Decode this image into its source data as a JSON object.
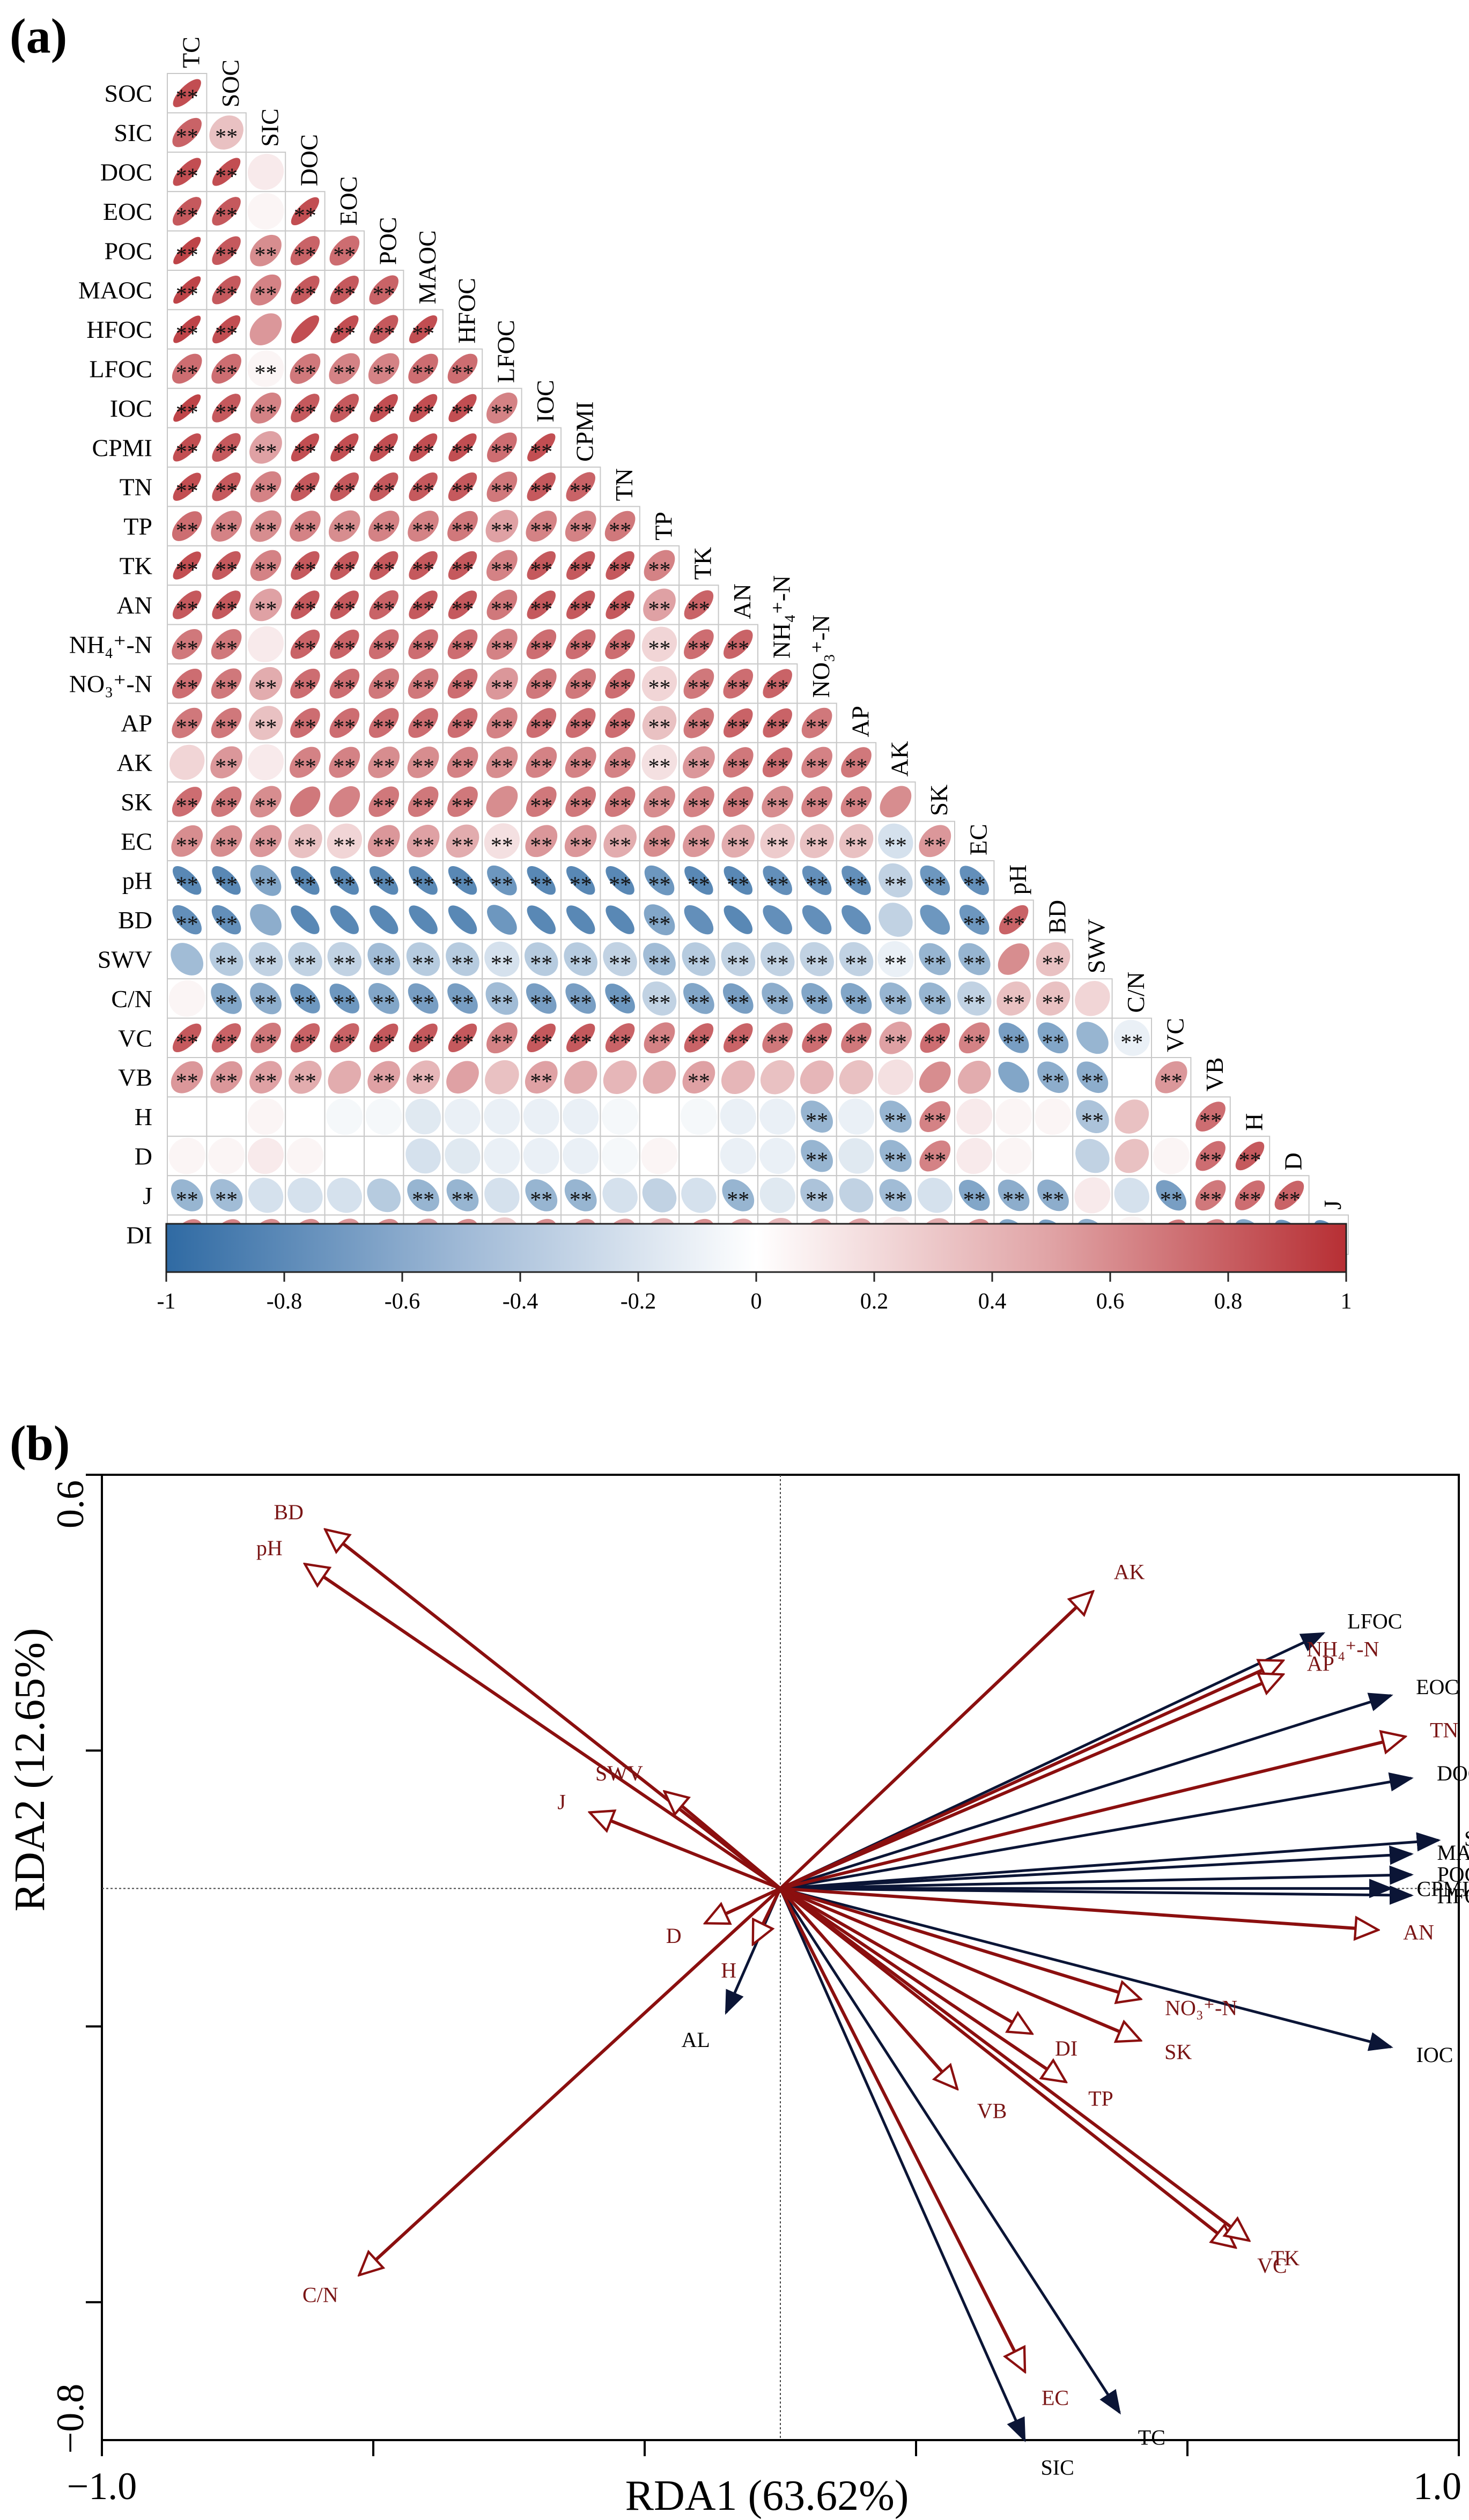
{
  "panel_a": {
    "label": "(a)"
  },
  "panel_b": {
    "label": "(b)"
  },
  "colors": {
    "negative": "#2f6aa3",
    "neutral": "#ffffff",
    "positive": "#b72f34",
    "explanatory_arrow": "#0b1536",
    "response_arrow": "#8b0f0f",
    "response_label": "#7a1515",
    "explanatory_label": "#000000"
  },
  "chart_data": [
    {
      "type": "heatmap",
      "title": "",
      "variables": [
        "TC",
        "SOC",
        "SIC",
        "DOC",
        "EOC",
        "POC",
        "MAOC",
        "HFOC",
        "LFOC",
        "IOC",
        "CPMI",
        "TN",
        "TP",
        "TK",
        "AN",
        "NH4+-N",
        "NO3+-N",
        "AP",
        "AK",
        "SK",
        "EC",
        "pH",
        "BD",
        "SWV",
        "C/N",
        "VC",
        "VB",
        "H",
        "D",
        "J",
        "DI"
      ],
      "variable_labels": [
        "TC",
        "SOC",
        "SIC",
        "DOC",
        "EOC",
        "POC",
        "MAOC",
        "HFOC",
        "LFOC",
        "IOC",
        "CPMI",
        "TN",
        "TP",
        "TK",
        "AN",
        "NH₄⁺-N",
        "NO₃⁺-N",
        "AP",
        "AK",
        "SK",
        "EC",
        "pH",
        "BD",
        "SWV",
        "C/N",
        "VC",
        "VB",
        "H",
        "D",
        "J",
        "DI"
      ],
      "significance_marker": "**",
      "colorbar": {
        "range": [
          -1,
          1
        ],
        "ticks": [
          -1,
          -0.8,
          -0.6,
          -0.4,
          -0.2,
          0,
          0.2,
          0.4,
          0.6,
          0.8,
          1
        ],
        "tick_labels": [
          "-1",
          "-0.8",
          "-0.6",
          "-0.4",
          "-0.2",
          "0",
          "0.2",
          "0.4",
          "0.6",
          "0.8",
          "1"
        ]
      },
      "lower_triangle_r": [
        [
          0.85
        ],
        [
          0.75,
          0.3
        ],
        [
          0.85,
          0.85,
          0.1
        ],
        [
          0.8,
          0.8,
          0.05,
          0.85
        ],
        [
          0.9,
          0.8,
          0.55,
          0.75,
          0.7
        ],
        [
          0.9,
          0.8,
          0.6,
          0.8,
          0.8,
          0.75
        ],
        [
          0.9,
          0.85,
          0.5,
          0.85,
          0.85,
          0.8,
          0.85
        ],
        [
          0.7,
          0.7,
          0.05,
          0.65,
          0.6,
          0.6,
          0.7,
          0.7
        ],
        [
          0.9,
          0.8,
          0.6,
          0.8,
          0.8,
          0.85,
          0.85,
          0.85,
          0.6
        ],
        [
          0.85,
          0.8,
          0.45,
          0.85,
          0.85,
          0.85,
          0.85,
          0.85,
          0.7,
          0.85
        ],
        [
          0.85,
          0.8,
          0.6,
          0.8,
          0.8,
          0.8,
          0.8,
          0.8,
          0.65,
          0.8,
          0.75
        ],
        [
          0.7,
          0.6,
          0.55,
          0.6,
          0.55,
          0.6,
          0.6,
          0.65,
          0.45,
          0.6,
          0.6,
          0.65
        ],
        [
          0.85,
          0.8,
          0.6,
          0.8,
          0.8,
          0.8,
          0.8,
          0.8,
          0.6,
          0.8,
          0.8,
          0.8,
          0.6
        ],
        [
          0.8,
          0.8,
          0.45,
          0.8,
          0.8,
          0.75,
          0.8,
          0.8,
          0.65,
          0.8,
          0.8,
          0.8,
          0.45,
          0.75
        ],
        [
          0.65,
          0.65,
          0.1,
          0.75,
          0.75,
          0.7,
          0.7,
          0.7,
          0.6,
          0.7,
          0.7,
          0.7,
          0.2,
          0.7,
          0.75
        ],
        [
          0.7,
          0.65,
          0.4,
          0.7,
          0.7,
          0.65,
          0.65,
          0.7,
          0.5,
          0.65,
          0.65,
          0.7,
          0.2,
          0.65,
          0.7,
          0.75
        ],
        [
          0.65,
          0.65,
          0.3,
          0.7,
          0.7,
          0.7,
          0.7,
          0.7,
          0.6,
          0.7,
          0.7,
          0.7,
          0.3,
          0.65,
          0.75,
          0.75,
          0.65
        ],
        [
          0.2,
          0.5,
          0.1,
          0.6,
          0.6,
          0.55,
          0.55,
          0.6,
          0.55,
          0.6,
          0.6,
          0.6,
          0.15,
          0.5,
          0.65,
          0.7,
          0.6,
          0.65
        ],
        [
          0.7,
          0.65,
          0.55,
          0.65,
          0.6,
          0.65,
          0.65,
          0.65,
          0.55,
          0.65,
          0.65,
          0.65,
          0.55,
          0.6,
          0.65,
          0.55,
          0.6,
          0.6,
          0.55
        ],
        [
          0.55,
          0.55,
          0.5,
          0.3,
          0.2,
          0.5,
          0.45,
          0.4,
          0.15,
          0.5,
          0.5,
          0.4,
          0.55,
          0.5,
          0.4,
          0.25,
          0.3,
          0.3,
          -0.2,
          0.5
        ],
        [
          -0.8,
          -0.8,
          -0.6,
          -0.8,
          -0.8,
          -0.8,
          -0.8,
          -0.8,
          -0.7,
          -0.8,
          -0.8,
          -0.8,
          -0.7,
          -0.8,
          -0.8,
          -0.75,
          -0.75,
          -0.75,
          -0.3,
          -0.7,
          -0.75
        ],
        [
          -0.75,
          -0.75,
          -0.55,
          -0.8,
          -0.8,
          -0.8,
          -0.8,
          -0.8,
          -0.7,
          -0.8,
          -0.8,
          -0.8,
          -0.6,
          -0.75,
          -0.8,
          -0.75,
          -0.75,
          -0.75,
          -0.3,
          -0.7,
          -0.7,
          0.75
        ],
        [
          -0.45,
          -0.35,
          -0.3,
          -0.3,
          -0.3,
          -0.45,
          -0.35,
          -0.35,
          -0.2,
          -0.35,
          -0.35,
          -0.3,
          -0.45,
          -0.35,
          -0.3,
          -0.3,
          -0.3,
          -0.3,
          -0.1,
          -0.5,
          -0.5,
          0.55,
          0.3
        ],
        [
          0.05,
          -0.6,
          -0.55,
          -0.7,
          -0.7,
          -0.6,
          -0.65,
          -0.65,
          -0.45,
          -0.65,
          -0.65,
          -0.7,
          -0.3,
          -0.6,
          -0.65,
          -0.55,
          -0.6,
          -0.6,
          -0.5,
          -0.5,
          -0.3,
          0.3,
          0.3,
          0.2
        ],
        [
          0.8,
          0.75,
          0.65,
          0.75,
          0.75,
          0.8,
          0.8,
          0.8,
          0.6,
          0.8,
          0.8,
          0.75,
          0.6,
          0.75,
          0.75,
          0.65,
          0.7,
          0.65,
          0.45,
          0.7,
          0.6,
          -0.65,
          -0.6,
          -0.5,
          -0.1
        ],
        [
          0.5,
          0.5,
          0.45,
          0.4,
          0.4,
          0.45,
          0.35,
          0.45,
          0.3,
          0.45,
          0.4,
          0.35,
          0.4,
          0.45,
          0.35,
          0.3,
          0.35,
          0.3,
          0.15,
          0.55,
          0.4,
          -0.6,
          -0.55,
          -0.55,
          0.0,
          0.5
        ],
        [
          0.0,
          0.0,
          0.05,
          0.0,
          -0.05,
          -0.05,
          -0.15,
          -0.1,
          -0.1,
          -0.1,
          -0.1,
          -0.05,
          0.0,
          -0.05,
          -0.1,
          -0.1,
          -0.5,
          -0.1,
          -0.5,
          0.6,
          0.1,
          0.05,
          0.05,
          -0.4,
          0.3,
          0.0,
          0.7
        ],
        [
          0.05,
          0.05,
          0.1,
          0.05,
          0.0,
          0.0,
          -0.2,
          -0.15,
          -0.1,
          -0.1,
          -0.1,
          -0.05,
          0.05,
          0.0,
          -0.1,
          -0.1,
          -0.5,
          -0.15,
          -0.5,
          0.6,
          0.1,
          0.05,
          0.0,
          -0.3,
          0.3,
          0.05,
          0.7,
          0.8
        ],
        [
          -0.5,
          -0.45,
          -0.2,
          -0.2,
          -0.2,
          -0.35,
          -0.5,
          -0.5,
          -0.2,
          -0.5,
          -0.5,
          -0.2,
          -0.3,
          -0.2,
          -0.5,
          -0.15,
          -0.4,
          -0.3,
          -0.45,
          -0.2,
          -0.6,
          -0.55,
          -0.55,
          0.1,
          -0.2,
          -0.65,
          0.65,
          0.7,
          0.75
        ],
        [
          0.6,
          0.6,
          0.55,
          0.55,
          0.5,
          0.55,
          0.5,
          0.55,
          0.25,
          0.55,
          0.55,
          0.5,
          0.4,
          0.55,
          0.5,
          0.35,
          0.5,
          0.45,
          0.1,
          0.4,
          0.55,
          -0.6,
          -0.65,
          -0.55,
          0.05,
          0.65,
          0.6,
          -0.6,
          -0.7,
          -0.75,
          -0.8
        ]
      ],
      "not_significant": [
        [
          2,
          2
        ],
        [
          3,
          2
        ],
        [
          4,
          2
        ],
        [
          7,
          2
        ],
        [
          7,
          3
        ],
        [
          15,
          2
        ],
        [
          18,
          0
        ],
        [
          18,
          2
        ],
        [
          19,
          3
        ],
        [
          19,
          4
        ],
        [
          19,
          8
        ],
        [
          19,
          18
        ],
        [
          22,
          2
        ],
        [
          22,
          3
        ],
        [
          22,
          4
        ],
        [
          22,
          5
        ],
        [
          22,
          6
        ],
        [
          22,
          7
        ],
        [
          22,
          8
        ],
        [
          22,
          9
        ],
        [
          22,
          10
        ],
        [
          22,
          11
        ],
        [
          22,
          13
        ],
        [
          22,
          14
        ],
        [
          22,
          15
        ],
        [
          22,
          16
        ],
        [
          22,
          17
        ],
        [
          22,
          18
        ],
        [
          22,
          19
        ],
        [
          23,
          0
        ],
        [
          23,
          21
        ],
        [
          24,
          0
        ],
        [
          24,
          23
        ],
        [
          25,
          23
        ],
        [
          26,
          4
        ],
        [
          26,
          7
        ],
        [
          26,
          8
        ],
        [
          26,
          10
        ],
        [
          26,
          11
        ],
        [
          26,
          12
        ],
        [
          26,
          14
        ],
        [
          26,
          15
        ],
        [
          26,
          16
        ],
        [
          26,
          17
        ],
        [
          26,
          18
        ],
        [
          26,
          19
        ],
        [
          26,
          20
        ],
        [
          26,
          21
        ],
        [
          26,
          24
        ],
        [
          27,
          0
        ],
        [
          27,
          1
        ],
        [
          27,
          2
        ],
        [
          27,
          3
        ],
        [
          27,
          4
        ],
        [
          27,
          5
        ],
        [
          27,
          6
        ],
        [
          27,
          7
        ],
        [
          27,
          8
        ],
        [
          27,
          9
        ],
        [
          27,
          10
        ],
        [
          27,
          11
        ],
        [
          27,
          12
        ],
        [
          27,
          13
        ],
        [
          27,
          14
        ],
        [
          27,
          15
        ],
        [
          27,
          17
        ],
        [
          27,
          20
        ],
        [
          27,
          21
        ],
        [
          27,
          22
        ],
        [
          27,
          24
        ],
        [
          27,
          25
        ],
        [
          28,
          0
        ],
        [
          28,
          1
        ],
        [
          28,
          2
        ],
        [
          28,
          3
        ],
        [
          28,
          4
        ],
        [
          28,
          5
        ],
        [
          28,
          6
        ],
        [
          28,
          7
        ],
        [
          28,
          8
        ],
        [
          28,
          9
        ],
        [
          28,
          10
        ],
        [
          28,
          11
        ],
        [
          28,
          12
        ],
        [
          28,
          13
        ],
        [
          28,
          14
        ],
        [
          28,
          15
        ],
        [
          28,
          17
        ],
        [
          28,
          20
        ],
        [
          28,
          21
        ],
        [
          28,
          22
        ],
        [
          28,
          23
        ],
        [
          28,
          24
        ],
        [
          28,
          25
        ],
        [
          29,
          2
        ],
        [
          29,
          3
        ],
        [
          29,
          4
        ],
        [
          29,
          5
        ],
        [
          29,
          8
        ],
        [
          29,
          11
        ],
        [
          29,
          12
        ],
        [
          29,
          13
        ],
        [
          29,
          15
        ],
        [
          29,
          17
        ],
        [
          29,
          19
        ],
        [
          29,
          23
        ],
        [
          29,
          24
        ],
        [
          30,
          8
        ],
        [
          30,
          12
        ],
        [
          30,
          15
        ],
        [
          30,
          18
        ],
        [
          30,
          19
        ],
        [
          30,
          23
        ],
        [
          30,
          24
        ]
      ]
    },
    {
      "type": "scatter",
      "subtype": "rda_biplot",
      "xlabel": "RDA1 (63.62%)",
      "ylabel": "RDA2 (12.65%)",
      "xlim": [
        -1.0,
        1.0
      ],
      "ylim": [
        -0.8,
        0.6
      ],
      "xtick_labels": [
        "−1.0",
        "1.0"
      ],
      "ytick_labels": [
        "0.6",
        "−0.8"
      ],
      "explanatory_vectors": [
        {
          "name": "LFOC",
          "x": 0.8,
          "y": 0.37
        },
        {
          "name": "EOC",
          "x": 0.9,
          "y": 0.28
        },
        {
          "name": "DOC",
          "x": 0.93,
          "y": 0.16
        },
        {
          "name": "SOC",
          "x": 0.97,
          "y": 0.07
        },
        {
          "name": "MAOC",
          "x": 0.93,
          "y": 0.05
        },
        {
          "name": "POC",
          "x": 0.93,
          "y": 0.02
        },
        {
          "name": "CPMI",
          "x": 0.9,
          "y": 0.0
        },
        {
          "name": "HFOC",
          "x": 0.93,
          "y": -0.01
        },
        {
          "name": "IOC",
          "x": 0.9,
          "y": -0.23
        },
        {
          "name": "TC",
          "x": 0.5,
          "y": -0.76
        },
        {
          "name": "SIC",
          "x": 0.36,
          "y": -0.8
        },
        {
          "name": "AL",
          "x": -0.08,
          "y": -0.18
        }
      ],
      "response_vectors": [
        {
          "name": "BD",
          "x": -0.67,
          "y": 0.52
        },
        {
          "name": "pH",
          "x": -0.7,
          "y": 0.47
        },
        {
          "name": "AK",
          "x": 0.46,
          "y": 0.43
        },
        {
          "name": "NH4+-N",
          "x": 0.74,
          "y": 0.33
        },
        {
          "name": "AP",
          "x": 0.74,
          "y": 0.31
        },
        {
          "name": "TN",
          "x": 0.92,
          "y": 0.22
        },
        {
          "name": "SWV",
          "x": -0.17,
          "y": 0.14
        },
        {
          "name": "J",
          "x": -0.28,
          "y": 0.11
        },
        {
          "name": "D",
          "x": -0.11,
          "y": -0.05
        },
        {
          "name": "H",
          "x": -0.04,
          "y": -0.08
        },
        {
          "name": "AN",
          "x": 0.88,
          "y": -0.06
        },
        {
          "name": "NO3+-N",
          "x": 0.53,
          "y": -0.16
        },
        {
          "name": "SK",
          "x": 0.53,
          "y": -0.22
        },
        {
          "name": "DI",
          "x": 0.37,
          "y": -0.21
        },
        {
          "name": "TP",
          "x": 0.42,
          "y": -0.28
        },
        {
          "name": "VB",
          "x": 0.26,
          "y": -0.29
        },
        {
          "name": "VC",
          "x": 0.67,
          "y": -0.52
        },
        {
          "name": "TK",
          "x": 0.69,
          "y": -0.51
        },
        {
          "name": "C/N",
          "x": -0.62,
          "y": -0.56
        },
        {
          "name": "EC",
          "x": 0.36,
          "y": -0.7
        }
      ],
      "label_texts": {
        "NH4+-N": "NH₄⁺-N",
        "NO3+-N": "NO₃⁺-N"
      }
    }
  ]
}
